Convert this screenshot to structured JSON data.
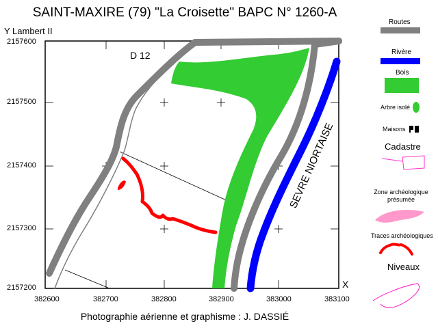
{
  "title": "SAINT-MAXIRE  (79)  \"La Croisette\"  BAPC N° 1260-A",
  "y_axis_label": "Y  Lambert II",
  "x_axis_letter": "X",
  "road_label": "D 12",
  "river_label": "SEVRE NIORTAISE",
  "credit": "Photographie aérienne et graphisme : J. DASSIÉ",
  "y_ticks": [
    "2157600",
    "2157500",
    "2157400",
    "2157300",
    "2157200"
  ],
  "x_ticks": [
    "382600",
    "382700",
    "382800",
    "382900",
    "383000",
    "383100"
  ],
  "legend": {
    "routes": "Routes",
    "riviere": "Rivère",
    "bois": "Bois",
    "arbre": "Arbre isolé",
    "maisons": "Maisons",
    "cadastre": "Cadastre",
    "zone": "Zone archéologique présumée",
    "traces": "Traces archéologiques",
    "niveaux": "Niveaux"
  },
  "colors": {
    "road": "#808080",
    "river": "#0000ff",
    "wood": "#33cc33",
    "traces": "#ff0000",
    "zone": "#ff99cc",
    "cadastre": "#ff33cc"
  }
}
